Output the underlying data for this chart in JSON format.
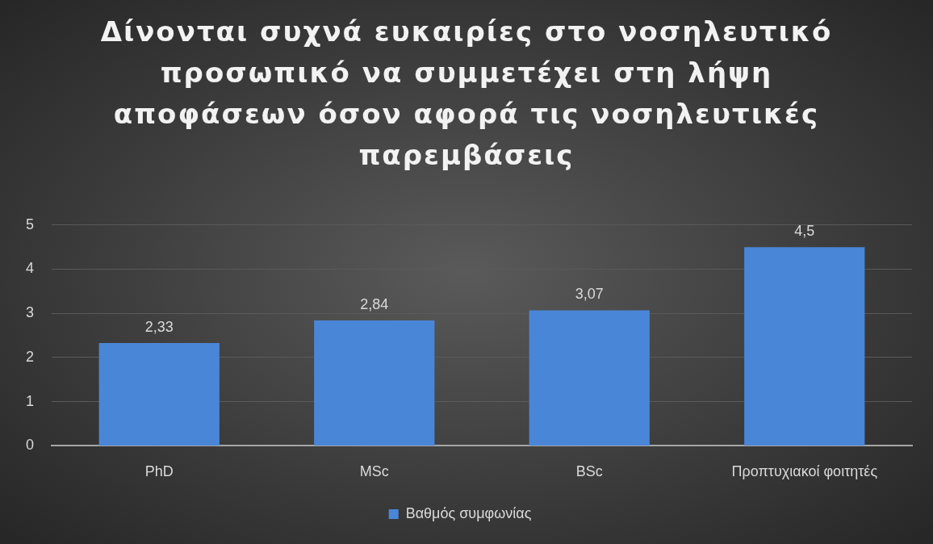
{
  "chart_data": {
    "type": "bar",
    "title": "Δίνονται συχνά ευκαιρίες στο νοσηλευτικό προσωπικό να συμμετέχει στη λήψη αποφάσεων όσον αφορά τις νοσηλευτικές παρεμβάσεις",
    "categories": [
      "PhD",
      "MSc",
      "BSc",
      "Προπτυχιακοί φοιτητές"
    ],
    "series": [
      {
        "name": "Βαθμός συμφωνίας",
        "color": "#4a86d8",
        "values": [
          2.33,
          2.84,
          3.07,
          4.5
        ],
        "value_labels": [
          "2,33",
          "2,84",
          "3,07",
          "4,5"
        ]
      }
    ],
    "ylim": [
      0,
      5
    ],
    "yticks": [
      0,
      1,
      2,
      3,
      4,
      5
    ],
    "grid": "y",
    "legend": "bottom"
  }
}
